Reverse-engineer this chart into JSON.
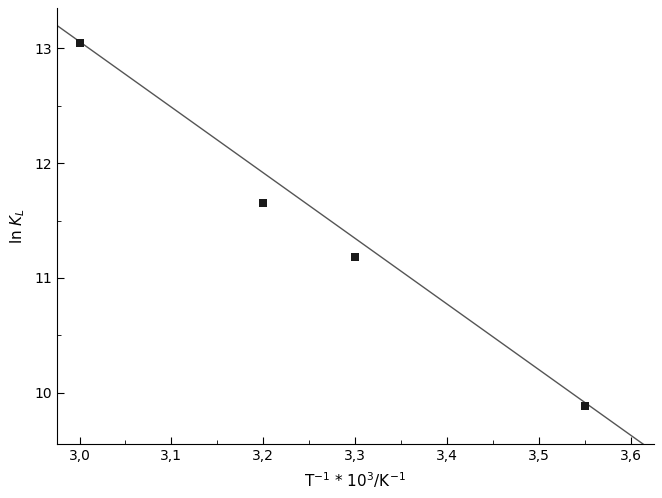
{
  "scatter_x": [
    3.0,
    3.2,
    3.3,
    3.55
  ],
  "scatter_y": [
    13.05,
    11.65,
    11.18,
    9.88
  ],
  "line_x": [
    2.975,
    3.625
  ],
  "line_slope": -5.72,
  "line_intercept": 30.22,
  "xlabel": "T$^{-1}$ * 10$^{3}$/K$^{-1}$",
  "xlim": [
    2.975,
    3.625
  ],
  "ylim": [
    9.55,
    13.35
  ],
  "xticks": [
    3.0,
    3.1,
    3.2,
    3.3,
    3.4,
    3.5,
    3.6
  ],
  "yticks": [
    10,
    11,
    12,
    13
  ],
  "xtick_labels": [
    "3,0",
    "3,1",
    "3,2",
    "3,3",
    "3,4",
    "3,5",
    "3,6"
  ],
  "ytick_labels": [
    "10",
    "11",
    "12",
    "13"
  ],
  "marker": "s",
  "marker_size": 6,
  "marker_color": "#1a1a1a",
  "line_color": "#555555",
  "line_width": 1.0,
  "bg_color": "#ffffff",
  "tick_fontsize": 10,
  "label_fontsize": 11
}
